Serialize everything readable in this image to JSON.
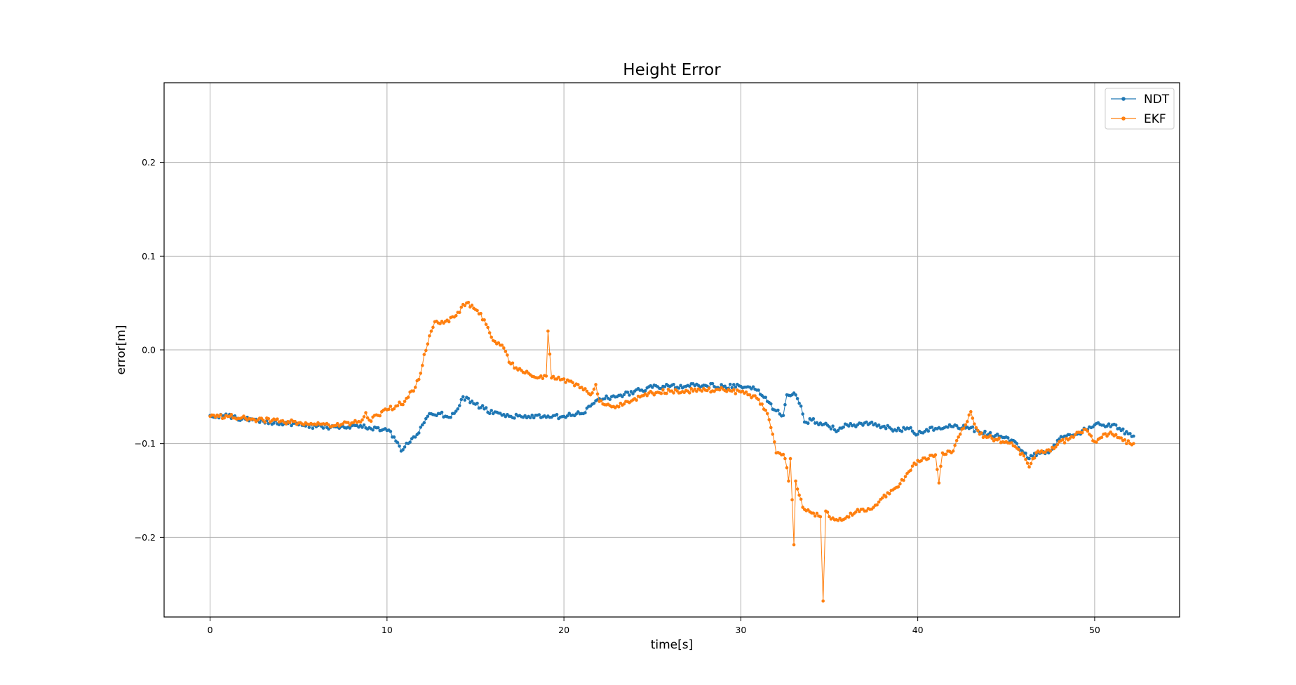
{
  "chart_data": {
    "type": "line",
    "title": "Height Error",
    "xlabel": "time[s]",
    "ylabel": "error[m]",
    "xlim": [
      -2.6,
      54.8
    ],
    "ylim": [
      -0.285,
      0.285
    ],
    "xticks": [
      0,
      10,
      20,
      30,
      40,
      50
    ],
    "xtick_labels": [
      "0",
      "10",
      "20",
      "30",
      "40",
      "50"
    ],
    "yticks": [
      -0.2,
      -0.1,
      0.0,
      0.1,
      0.2
    ],
    "ytick_labels": [
      "−0.2",
      "−0.1",
      "0.0",
      "0.1",
      "0.2"
    ],
    "grid": true,
    "legend_position": "top-right",
    "sample_interval_s": 0.1,
    "series": [
      {
        "name": "NDT",
        "color": "#1f77b4",
        "points": [
          [
            0,
            -0.07
          ],
          [
            1,
            -0.071
          ],
          [
            2,
            -0.074
          ],
          [
            3,
            -0.076
          ],
          [
            4,
            -0.078
          ],
          [
            5,
            -0.08
          ],
          [
            6,
            -0.082
          ],
          [
            7,
            -0.082
          ],
          [
            8,
            -0.081
          ],
          [
            9,
            -0.083
          ],
          [
            10,
            -0.086
          ],
          [
            10.4,
            -0.093
          ],
          [
            10.8,
            -0.108
          ],
          [
            11.2,
            -0.1
          ],
          [
            11.6,
            -0.093
          ],
          [
            12.0,
            -0.08
          ],
          [
            12.4,
            -0.068
          ],
          [
            13.0,
            -0.068
          ],
          [
            13.5,
            -0.072
          ],
          [
            14.0,
            -0.063
          ],
          [
            14.3,
            -0.05
          ],
          [
            15.0,
            -0.058
          ],
          [
            15.5,
            -0.063
          ],
          [
            16.0,
            -0.068
          ],
          [
            17.0,
            -0.071
          ],
          [
            18.0,
            -0.071
          ],
          [
            19.0,
            -0.072
          ],
          [
            20.0,
            -0.071
          ],
          [
            21.0,
            -0.068
          ],
          [
            21.5,
            -0.06
          ],
          [
            22.0,
            -0.052
          ],
          [
            23.0,
            -0.05
          ],
          [
            24.0,
            -0.044
          ],
          [
            25.0,
            -0.04
          ],
          [
            26.0,
            -0.039
          ],
          [
            27.0,
            -0.038
          ],
          [
            28.0,
            -0.038
          ],
          [
            29.0,
            -0.039
          ],
          [
            30.0,
            -0.039
          ],
          [
            31.0,
            -0.043
          ],
          [
            31.5,
            -0.055
          ],
          [
            32.0,
            -0.065
          ],
          [
            32.4,
            -0.07
          ],
          [
            32.6,
            -0.048
          ],
          [
            33.0,
            -0.046
          ],
          [
            33.4,
            -0.06
          ],
          [
            33.6,
            -0.077
          ],
          [
            34.0,
            -0.075
          ],
          [
            35.0,
            -0.082
          ],
          [
            35.5,
            -0.086
          ],
          [
            36.0,
            -0.08
          ],
          [
            36.5,
            -0.082
          ],
          [
            37.0,
            -0.078
          ],
          [
            37.5,
            -0.08
          ],
          [
            38.0,
            -0.082
          ],
          [
            39.0,
            -0.086
          ],
          [
            39.5,
            -0.084
          ],
          [
            40.0,
            -0.09
          ],
          [
            40.5,
            -0.085
          ],
          [
            41.0,
            -0.084
          ],
          [
            42.0,
            -0.082
          ],
          [
            43.0,
            -0.083
          ],
          [
            43.5,
            -0.088
          ],
          [
            44.0,
            -0.09
          ],
          [
            45.0,
            -0.093
          ],
          [
            45.5,
            -0.098
          ],
          [
            46.0,
            -0.11
          ],
          [
            46.3,
            -0.116
          ],
          [
            46.8,
            -0.11
          ],
          [
            47.5,
            -0.108
          ],
          [
            48.0,
            -0.095
          ],
          [
            49.0,
            -0.09
          ],
          [
            49.5,
            -0.085
          ],
          [
            50.0,
            -0.08
          ],
          [
            51.0,
            -0.08
          ],
          [
            51.5,
            -0.086
          ],
          [
            52.2,
            -0.092
          ]
        ]
      },
      {
        "name": "EKF",
        "color": "#ff7f0e",
        "points": [
          [
            0,
            -0.071
          ],
          [
            1,
            -0.071
          ],
          [
            2,
            -0.073
          ],
          [
            3,
            -0.075
          ],
          [
            4,
            -0.076
          ],
          [
            5,
            -0.078
          ],
          [
            6,
            -0.08
          ],
          [
            7,
            -0.081
          ],
          [
            7.5,
            -0.079
          ],
          [
            8,
            -0.078
          ],
          [
            8.5,
            -0.077
          ],
          [
            8.8,
            -0.067
          ],
          [
            9.0,
            -0.075
          ],
          [
            9.5,
            -0.07
          ],
          [
            10.0,
            -0.064
          ],
          [
            10.5,
            -0.06
          ],
          [
            11.0,
            -0.055
          ],
          [
            11.3,
            -0.045
          ],
          [
            11.6,
            -0.04
          ],
          [
            11.9,
            -0.025
          ],
          [
            12.1,
            -0.005
          ],
          [
            12.4,
            0.015
          ],
          [
            12.7,
            0.03
          ],
          [
            13.0,
            0.028
          ],
          [
            13.5,
            0.03
          ],
          [
            14.0,
            0.04
          ],
          [
            14.5,
            0.05
          ],
          [
            15.0,
            0.043
          ],
          [
            15.5,
            0.032
          ],
          [
            16.0,
            0.01
          ],
          [
            16.5,
            0.005
          ],
          [
            17.0,
            -0.015
          ],
          [
            17.5,
            -0.02
          ],
          [
            18.0,
            -0.025
          ],
          [
            18.5,
            -0.03
          ],
          [
            19.0,
            -0.028
          ],
          [
            19.1,
            0.02
          ],
          [
            19.3,
            -0.03
          ],
          [
            19.8,
            -0.032
          ],
          [
            20.5,
            -0.035
          ],
          [
            21.0,
            -0.04
          ],
          [
            21.5,
            -0.048
          ],
          [
            21.8,
            -0.037
          ],
          [
            22.0,
            -0.055
          ],
          [
            22.5,
            -0.058
          ],
          [
            23.0,
            -0.06
          ],
          [
            23.5,
            -0.055
          ],
          [
            24.0,
            -0.052
          ],
          [
            25.0,
            -0.046
          ],
          [
            26.0,
            -0.044
          ],
          [
            27.0,
            -0.044
          ],
          [
            28.0,
            -0.043
          ],
          [
            29.0,
            -0.042
          ],
          [
            29.5,
            -0.044
          ],
          [
            30.0,
            -0.045
          ],
          [
            30.5,
            -0.048
          ],
          [
            31.0,
            -0.053
          ],
          [
            31.5,
            -0.068
          ],
          [
            31.8,
            -0.09
          ],
          [
            32.0,
            -0.11
          ],
          [
            32.3,
            -0.112
          ],
          [
            32.5,
            -0.116
          ],
          [
            32.7,
            -0.14
          ],
          [
            32.8,
            -0.116
          ],
          [
            33.0,
            -0.208
          ],
          [
            33.1,
            -0.14
          ],
          [
            33.3,
            -0.155
          ],
          [
            33.5,
            -0.168
          ],
          [
            34.0,
            -0.174
          ],
          [
            34.5,
            -0.178
          ],
          [
            34.65,
            -0.268
          ],
          [
            34.8,
            -0.172
          ],
          [
            35.0,
            -0.178
          ],
          [
            35.5,
            -0.182
          ],
          [
            36.0,
            -0.178
          ],
          [
            36.5,
            -0.173
          ],
          [
            37.0,
            -0.172
          ],
          [
            37.5,
            -0.168
          ],
          [
            38.0,
            -0.158
          ],
          [
            38.5,
            -0.15
          ],
          [
            39.0,
            -0.143
          ],
          [
            39.5,
            -0.13
          ],
          [
            40.0,
            -0.118
          ],
          [
            40.5,
            -0.117
          ],
          [
            41.0,
            -0.112
          ],
          [
            41.2,
            -0.142
          ],
          [
            41.4,
            -0.11
          ],
          [
            42.0,
            -0.108
          ],
          [
            42.3,
            -0.093
          ],
          [
            42.7,
            -0.08
          ],
          [
            43.0,
            -0.066
          ],
          [
            43.3,
            -0.083
          ],
          [
            43.5,
            -0.09
          ],
          [
            44.0,
            -0.093
          ],
          [
            44.5,
            -0.096
          ],
          [
            45.0,
            -0.098
          ],
          [
            45.5,
            -0.103
          ],
          [
            46.0,
            -0.113
          ],
          [
            46.3,
            -0.125
          ],
          [
            46.8,
            -0.108
          ],
          [
            47.5,
            -0.108
          ],
          [
            48.0,
            -0.098
          ],
          [
            48.5,
            -0.096
          ],
          [
            49.0,
            -0.088
          ],
          [
            49.5,
            -0.085
          ],
          [
            50.0,
            -0.098
          ],
          [
            50.5,
            -0.09
          ],
          [
            51.0,
            -0.09
          ],
          [
            51.5,
            -0.094
          ],
          [
            52.0,
            -0.1
          ],
          [
            52.2,
            -0.1
          ]
        ]
      }
    ]
  }
}
